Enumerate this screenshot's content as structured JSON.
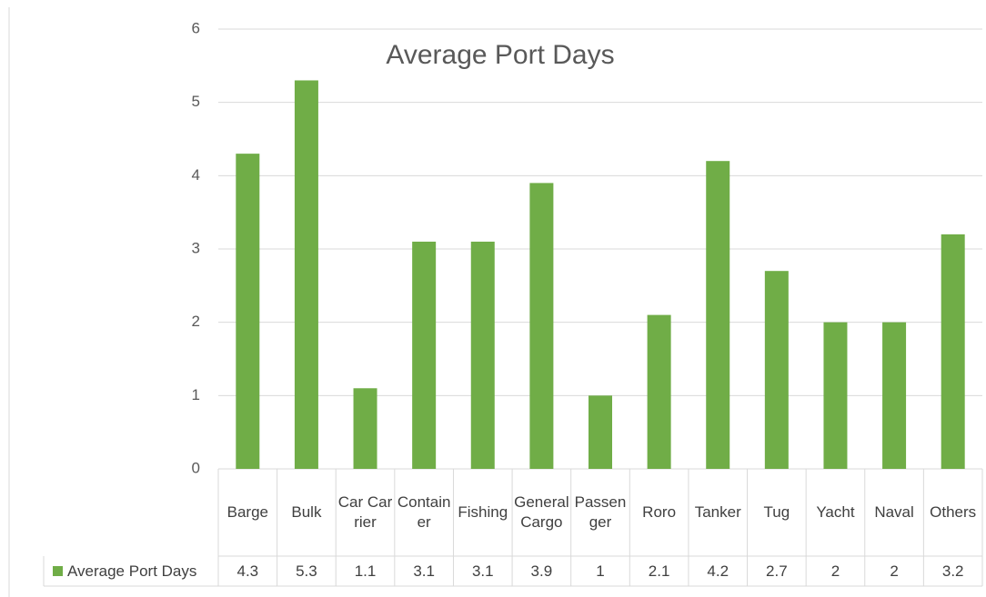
{
  "chart_data": {
    "type": "bar",
    "title": "Average Port Days",
    "categories": [
      "Barge",
      "Bulk",
      "Car Carrier",
      "Container",
      "Fishing",
      "General Cargo",
      "Passenger",
      "Roro",
      "Tanker",
      "Tug",
      "Yacht",
      "Naval",
      "Others"
    ],
    "series": [
      {
        "name": "Average Port Days",
        "color": "#70ad47",
        "values": [
          4.3,
          5.3,
          1.1,
          3.1,
          3.1,
          3.9,
          1,
          2.1,
          4.2,
          2.7,
          2,
          2,
          3.2
        ]
      }
    ],
    "ylim": [
      0,
      6
    ],
    "yticks": [
      0,
      1,
      2,
      3,
      4,
      5,
      6
    ],
    "grid": true,
    "data_table": true
  }
}
